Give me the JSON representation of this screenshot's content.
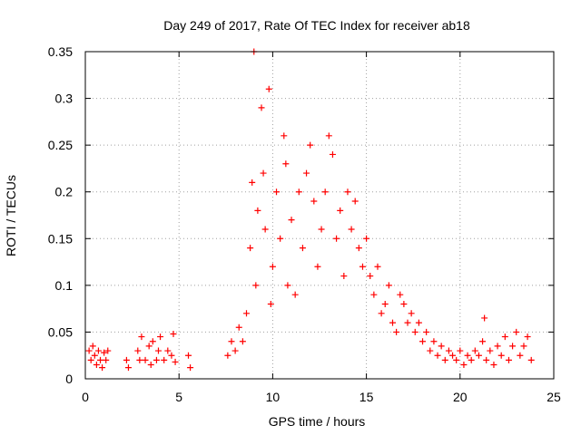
{
  "chart_data": {
    "type": "scatter",
    "title": "Day 249 of 2017, Rate Of TEC Index for receiver ab18",
    "xlabel": "GPS time / hours",
    "ylabel": "ROTI / TECUs",
    "xlim": [
      0,
      25
    ],
    "ylim": [
      0,
      0.35
    ],
    "x_ticks": [
      0,
      5,
      10,
      15,
      20,
      25
    ],
    "y_ticks": [
      0,
      0.05,
      0.1,
      0.15,
      0.2,
      0.25,
      0.3,
      0.35
    ],
    "x_tick_labels": [
      "0",
      "5",
      "10",
      "15",
      "20",
      "25"
    ],
    "y_tick_labels": [
      "0",
      "0.05",
      "0.1",
      "0.15",
      "0.2",
      "0.25",
      "0.3",
      "0.35"
    ],
    "grid": true,
    "marker": "plus",
    "color": "#ff0000",
    "series": [
      {
        "points": [
          [
            0.2,
            0.03
          ],
          [
            0.3,
            0.02
          ],
          [
            0.4,
            0.035
          ],
          [
            0.5,
            0.025
          ],
          [
            0.6,
            0.015
          ],
          [
            0.7,
            0.03
          ],
          [
            0.8,
            0.02
          ],
          [
            0.9,
            0.012
          ],
          [
            1.0,
            0.028
          ],
          [
            1.1,
            0.02
          ],
          [
            1.2,
            0.03
          ],
          [
            2.2,
            0.02
          ],
          [
            2.3,
            0.012
          ],
          [
            2.8,
            0.03
          ],
          [
            2.9,
            0.02
          ],
          [
            3.0,
            0.045
          ],
          [
            3.2,
            0.02
          ],
          [
            3.4,
            0.035
          ],
          [
            3.5,
            0.015
          ],
          [
            3.6,
            0.04
          ],
          [
            3.8,
            0.02
          ],
          [
            3.9,
            0.03
          ],
          [
            4.0,
            0.045
          ],
          [
            4.2,
            0.02
          ],
          [
            4.4,
            0.03
          ],
          [
            4.6,
            0.025
          ],
          [
            4.7,
            0.048
          ],
          [
            4.8,
            0.018
          ],
          [
            5.5,
            0.025
          ],
          [
            5.6,
            0.012
          ],
          [
            7.6,
            0.025
          ],
          [
            7.8,
            0.04
          ],
          [
            8.0,
            0.03
          ],
          [
            8.2,
            0.055
          ],
          [
            8.4,
            0.04
          ],
          [
            8.6,
            0.07
          ],
          [
            8.8,
            0.14
          ],
          [
            8.9,
            0.21
          ],
          [
            9.0,
            0.35
          ],
          [
            9.1,
            0.1
          ],
          [
            9.2,
            0.18
          ],
          [
            9.4,
            0.29
          ],
          [
            9.5,
            0.22
          ],
          [
            9.6,
            0.16
          ],
          [
            9.8,
            0.31
          ],
          [
            9.9,
            0.08
          ],
          [
            10.0,
            0.12
          ],
          [
            10.2,
            0.2
          ],
          [
            10.4,
            0.15
          ],
          [
            10.6,
            0.26
          ],
          [
            10.7,
            0.23
          ],
          [
            10.8,
            0.1
          ],
          [
            11.0,
            0.17
          ],
          [
            11.2,
            0.09
          ],
          [
            11.4,
            0.2
          ],
          [
            11.6,
            0.14
          ],
          [
            11.8,
            0.22
          ],
          [
            12.0,
            0.25
          ],
          [
            12.2,
            0.19
          ],
          [
            12.4,
            0.12
          ],
          [
            12.6,
            0.16
          ],
          [
            12.8,
            0.2
          ],
          [
            13.0,
            0.26
          ],
          [
            13.2,
            0.24
          ],
          [
            13.4,
            0.15
          ],
          [
            13.6,
            0.18
          ],
          [
            13.8,
            0.11
          ],
          [
            14.0,
            0.2
          ],
          [
            14.2,
            0.16
          ],
          [
            14.4,
            0.19
          ],
          [
            14.6,
            0.14
          ],
          [
            14.8,
            0.12
          ],
          [
            15.0,
            0.15
          ],
          [
            15.2,
            0.11
          ],
          [
            15.4,
            0.09
          ],
          [
            15.6,
            0.12
          ],
          [
            15.8,
            0.07
          ],
          [
            16.0,
            0.08
          ],
          [
            16.2,
            0.1
          ],
          [
            16.4,
            0.06
          ],
          [
            16.6,
            0.05
          ],
          [
            16.8,
            0.09
          ],
          [
            17.0,
            0.08
          ],
          [
            17.2,
            0.06
          ],
          [
            17.4,
            0.07
          ],
          [
            17.6,
            0.05
          ],
          [
            17.8,
            0.06
          ],
          [
            18.0,
            0.04
          ],
          [
            18.2,
            0.05
          ],
          [
            18.4,
            0.03
          ],
          [
            18.6,
            0.04
          ],
          [
            18.8,
            0.025
          ],
          [
            19.0,
            0.035
          ],
          [
            19.2,
            0.02
          ],
          [
            19.4,
            0.03
          ],
          [
            19.6,
            0.025
          ],
          [
            19.8,
            0.02
          ],
          [
            20.0,
            0.03
          ],
          [
            20.2,
            0.015
          ],
          [
            20.4,
            0.025
          ],
          [
            20.6,
            0.02
          ],
          [
            20.8,
            0.03
          ],
          [
            21.0,
            0.025
          ],
          [
            21.2,
            0.04
          ],
          [
            21.3,
            0.065
          ],
          [
            21.4,
            0.02
          ],
          [
            21.6,
            0.03
          ],
          [
            21.8,
            0.015
          ],
          [
            22.0,
            0.035
          ],
          [
            22.2,
            0.025
          ],
          [
            22.4,
            0.045
          ],
          [
            22.6,
            0.02
          ],
          [
            22.8,
            0.035
          ],
          [
            23.0,
            0.05
          ],
          [
            23.2,
            0.025
          ],
          [
            23.4,
            0.035
          ],
          [
            23.6,
            0.045
          ],
          [
            23.8,
            0.02
          ]
        ]
      }
    ]
  }
}
